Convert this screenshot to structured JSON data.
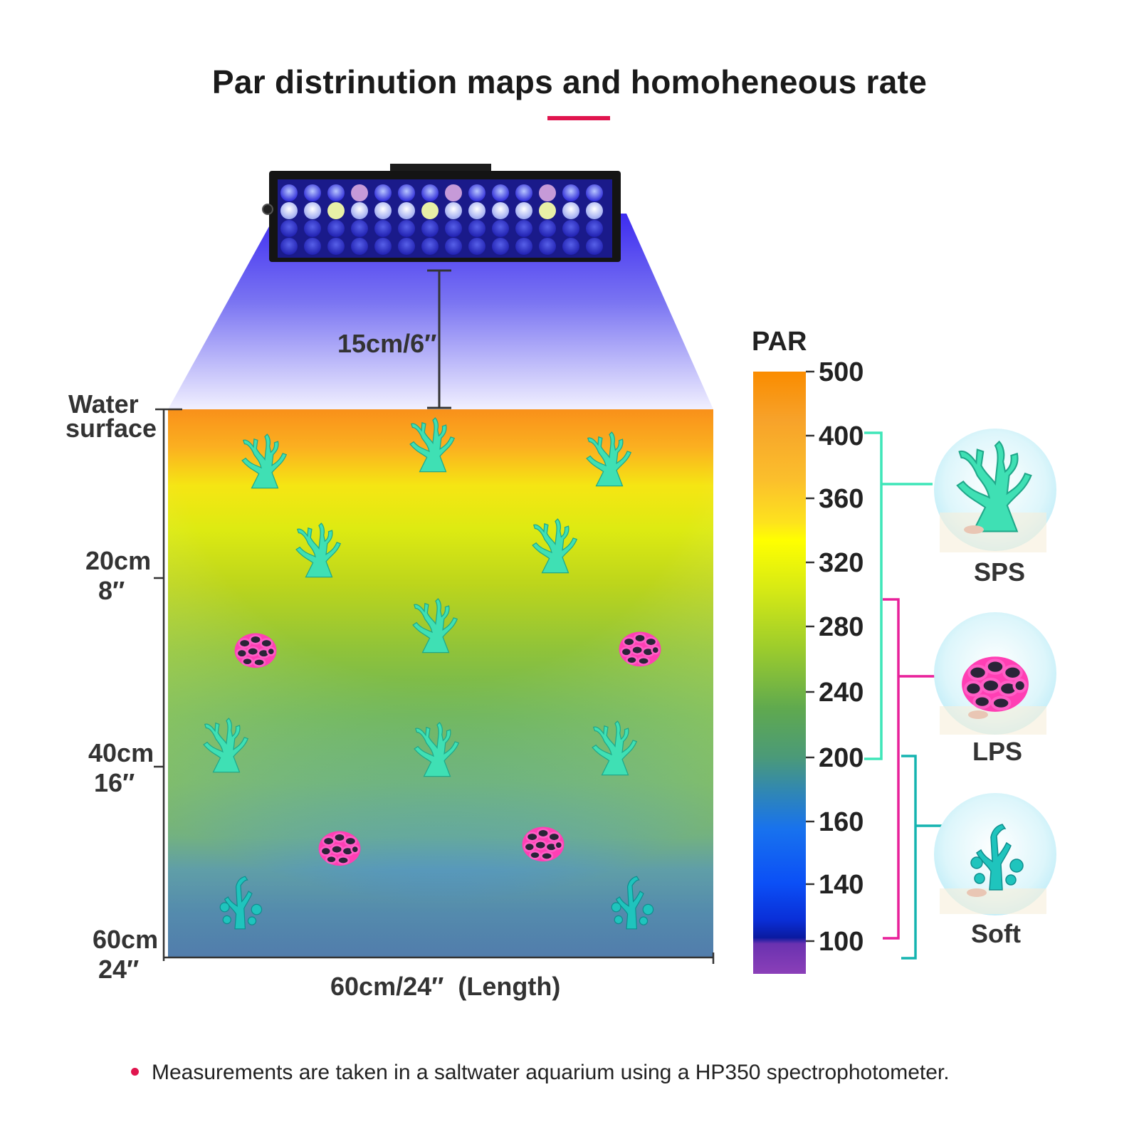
{
  "title": "Par distrinution maps and homoheneous rate",
  "fixture_distance_label": "15cm/6″",
  "water_surface_label": [
    "Water",
    "surface"
  ],
  "depth_labels": [
    {
      "cm": "20cm",
      "inch": "8″"
    },
    {
      "cm": "40cm",
      "inch": "16″"
    },
    {
      "cm": "60cm",
      "inch": "24″"
    }
  ],
  "length_label": "60cm/24″  (Length)",
  "scale": {
    "title": "PAR",
    "ticks": [
      "500",
      "400",
      "360",
      "320",
      "280",
      "240",
      "200",
      "160",
      "140",
      "100"
    ]
  },
  "coral_groups": [
    {
      "name": "SPS",
      "color": "#3ee6b8"
    },
    {
      "name": "LPS",
      "color": "#e8209a"
    },
    {
      "name": "Soft",
      "color": "#15b4b0"
    }
  ],
  "footnote": "Measurements are taken in a saltwater aquarium using a HP350 spectrophotometer.",
  "accent_color": "#e0154e"
}
